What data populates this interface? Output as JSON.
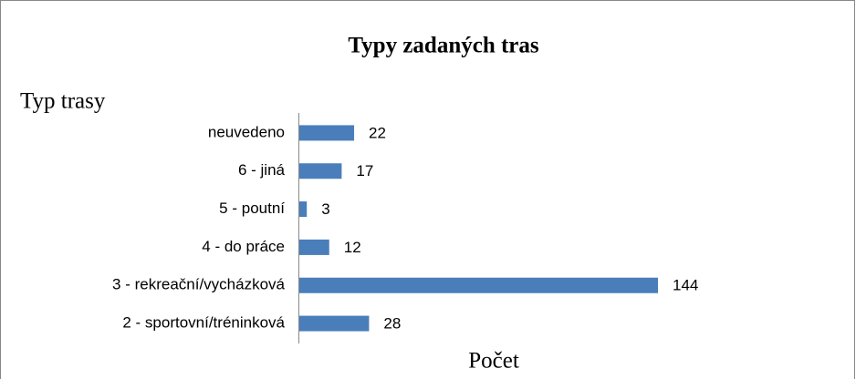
{
  "chart_data": {
    "type": "bar",
    "orientation": "horizontal",
    "title": "Typy zadaných tras",
    "y_label": "Typ trasy",
    "x_label": "Počet",
    "categories": [
      "neuvedeno",
      "6 - jiná",
      "5 - poutní",
      "4 - do práce",
      "3 - rekreační/vycházková",
      "2 - sportovní/tréninková"
    ],
    "values": [
      22,
      17,
      3,
      12,
      144,
      28
    ],
    "color": "#4a7ebb"
  }
}
